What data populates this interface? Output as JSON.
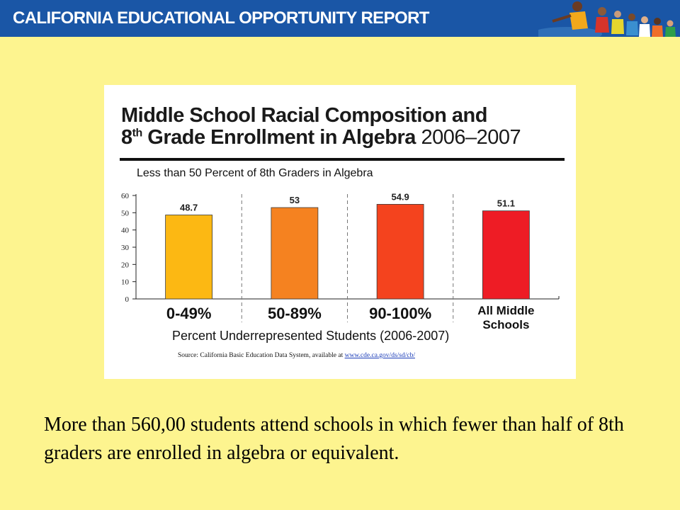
{
  "header": {
    "title": "CALIFORNIA EDUCATIONAL OPPORTUNITY REPORT",
    "colors": {
      "banner": "#1a56a6",
      "text": "#ffffff"
    }
  },
  "slide": {
    "background": "#fdf48f"
  },
  "chart_data": {
    "type": "bar",
    "title_line1": "Middle School Racial Composition and",
    "title_line2_prefix": "8",
    "title_line2_sup": "th",
    "title_line2_main": " Grade Enrollment in Algebra",
    "title_year": " 2006–2007",
    "subtitle": "Less than 50 Percent of 8th Graders in Algebra",
    "categories": [
      "0-49%",
      "50-89%",
      "90-100%",
      "All Middle Schools"
    ],
    "category_display": [
      [
        "0-49%"
      ],
      [
        "50-89%"
      ],
      [
        "90-100%"
      ],
      [
        "All Middle",
        "Schools"
      ]
    ],
    "values": [
      48.7,
      53,
      54.9,
      51.1
    ],
    "value_labels": [
      "48.7",
      "53",
      "54.9",
      "51.1"
    ],
    "colors": [
      "#fcb813",
      "#f58220",
      "#f4431e",
      "#ee1c25"
    ],
    "ylim": [
      0,
      60
    ],
    "yticks": [
      0,
      10,
      20,
      30,
      40,
      50,
      60
    ],
    "xlabel": "Percent Underrepresented Students (2006-2007)",
    "ylabel": "",
    "grid": false,
    "source_text": "Source:  California Basic Education Data System, available at ",
    "source_link": "www.cde.ca.gov/ds/sd/cb/"
  },
  "footnote": "More than 560,00 students attend schools in which fewer than half of 8th graders are enrolled in algebra or equivalent."
}
